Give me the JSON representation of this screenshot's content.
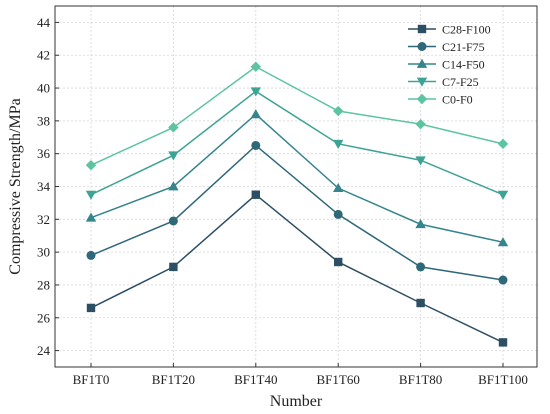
{
  "chart_data": {
    "type": "line",
    "title": "",
    "xlabel": "Number",
    "ylabel": "Compressive Strength/MPa",
    "categories": [
      "BF1T0",
      "BF1T20",
      "BF1T40",
      "BF1T60",
      "BF1T80",
      "BF1T100"
    ],
    "ylim": [
      23,
      45
    ],
    "yticks": [
      24,
      26,
      28,
      30,
      32,
      34,
      36,
      38,
      40,
      42,
      44
    ],
    "grid": true,
    "legend_position": "top-right",
    "series": [
      {
        "name": "C28-F100",
        "marker": "square",
        "color": "#2c4f63",
        "values": [
          26.6,
          29.1,
          33.5,
          29.4,
          26.9,
          24.5
        ]
      },
      {
        "name": "C21-F75",
        "marker": "circle",
        "color": "#2f6878",
        "values": [
          29.8,
          31.9,
          36.5,
          32.3,
          29.1,
          28.3
        ]
      },
      {
        "name": "C14-F50",
        "marker": "triangle-up",
        "color": "#34858c",
        "values": [
          32.1,
          34.0,
          38.4,
          33.9,
          31.7,
          30.6
        ]
      },
      {
        "name": "C7-F25",
        "marker": "triangle-down",
        "color": "#3da394",
        "values": [
          33.5,
          35.9,
          39.8,
          36.6,
          35.6,
          33.5
        ]
      },
      {
        "name": "C0-F0",
        "marker": "diamond",
        "color": "#5cc4a2",
        "values": [
          35.3,
          37.6,
          41.3,
          38.6,
          37.8,
          36.6
        ]
      }
    ]
  }
}
